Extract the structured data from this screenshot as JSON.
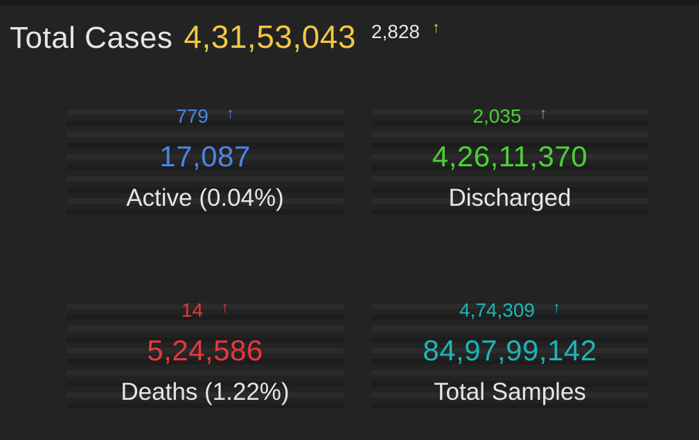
{
  "header": {
    "label": "Total Cases",
    "total": "4,31,53,043",
    "delta": "2,828",
    "arrow": "↑",
    "total_color": "#f2c744"
  },
  "cards": [
    {
      "delta": "779",
      "arrow": "↑",
      "value": "17,087",
      "caption": "Active (0.04%)",
      "color": "#4a86e8"
    },
    {
      "delta": "2,035",
      "arrow": "↑",
      "value": "4,26,11,370",
      "caption": "Discharged",
      "color": "#4cd137"
    },
    {
      "delta": "14",
      "arrow": "↑",
      "value": "5,24,586",
      "caption": "Deaths (1.22%)",
      "color": "#e8383d"
    },
    {
      "delta": "4,74,309",
      "arrow": "↑",
      "value": "84,97,99,142",
      "caption": "Total Samples",
      "color": "#1fb5b5"
    }
  ]
}
